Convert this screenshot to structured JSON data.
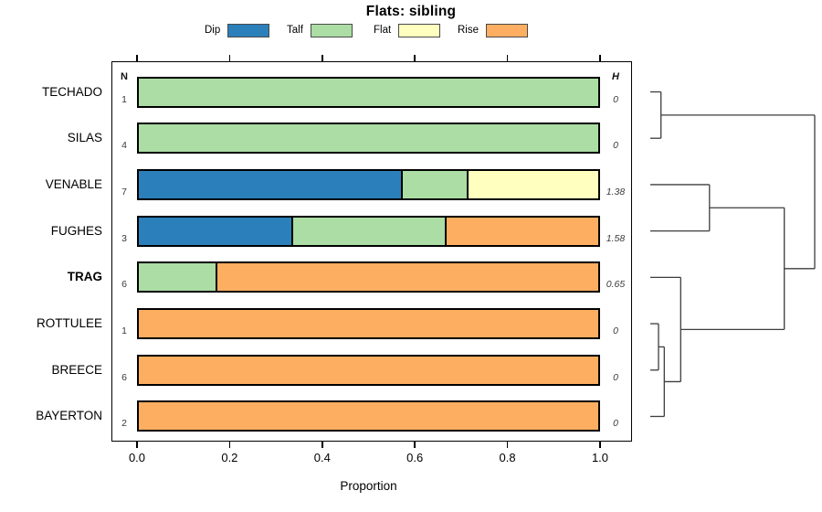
{
  "chart_data": {
    "type": "bar",
    "stacked": true,
    "orientation": "horizontal",
    "title": "Flats: sibling",
    "xlabel": "Proportion",
    "xlim": [
      0,
      1
    ],
    "x_ticks": [
      0.0,
      0.2,
      0.4,
      0.6,
      0.8,
      1.0
    ],
    "x_tick_labels": [
      "0.0",
      "0.2",
      "0.4",
      "0.6",
      "0.8",
      "1.0"
    ],
    "grid": false,
    "legend_position": "top",
    "legend": [
      {
        "label": "Dip",
        "color": "#2B7FBA"
      },
      {
        "label": "Talf",
        "color": "#ABDDA4"
      },
      {
        "label": "Flat",
        "color": "#FFFFBF"
      },
      {
        "label": "Rise",
        "color": "#FDAE61"
      }
    ],
    "columns": {
      "n_header": "N",
      "h_header": "H"
    },
    "rows": [
      {
        "label": "TECHADO",
        "n": "1",
        "entropy": "0",
        "bold": false,
        "segments": [
          {
            "category": "Talf",
            "value": 1.0
          }
        ]
      },
      {
        "label": "SILAS",
        "n": "4",
        "entropy": "0",
        "bold": false,
        "segments": [
          {
            "category": "Talf",
            "value": 1.0
          }
        ]
      },
      {
        "label": "VENABLE",
        "n": "7",
        "entropy": "1.38",
        "bold": false,
        "segments": [
          {
            "category": "Dip",
            "value": 0.571
          },
          {
            "category": "Talf",
            "value": 0.143
          },
          {
            "category": "Flat",
            "value": 0.286
          }
        ]
      },
      {
        "label": "FUGHES",
        "n": "3",
        "entropy": "1.58",
        "bold": false,
        "segments": [
          {
            "category": "Dip",
            "value": 0.333
          },
          {
            "category": "Talf",
            "value": 0.333
          },
          {
            "category": "Rise",
            "value": 0.334
          }
        ]
      },
      {
        "label": "TRAG",
        "n": "6",
        "entropy": "0.65",
        "bold": true,
        "segments": [
          {
            "category": "Talf",
            "value": 0.167
          },
          {
            "category": "Rise",
            "value": 0.833
          }
        ]
      },
      {
        "label": "ROTTULEE",
        "n": "1",
        "entropy": "0",
        "bold": false,
        "segments": [
          {
            "category": "Rise",
            "value": 1.0
          }
        ]
      },
      {
        "label": "BREECE",
        "n": "6",
        "entropy": "0",
        "bold": false,
        "segments": [
          {
            "category": "Rise",
            "value": 1.0
          }
        ]
      },
      {
        "label": "BAYERTON",
        "n": "2",
        "entropy": "0",
        "bold": false,
        "segments": [
          {
            "category": "Rise",
            "value": 1.0
          }
        ]
      }
    ],
    "dendrogram": {
      "side": "right",
      "leaf_order": [
        "TECHADO",
        "SILAS",
        "VENABLE",
        "FUGHES",
        "TRAG",
        "ROTTULEE",
        "BREECE",
        "BAYERTON"
      ],
      "merges": [
        {
          "a": "ROTTULEE",
          "b": "BREECE",
          "height": 0.05
        },
        {
          "a": 0,
          "b": "BAYERTON",
          "height": 0.085
        },
        {
          "a": "TECHADO",
          "b": "SILAS",
          "height": 0.065
        },
        {
          "a": "VENABLE",
          "b": "FUGHES",
          "height": 0.36
        },
        {
          "a": "TRAG",
          "b": 1,
          "height": 0.185
        },
        {
          "a": 3,
          "b": 4,
          "height": 0.815
        },
        {
          "a": 2,
          "b": 5,
          "height": 1.0
        }
      ]
    },
    "line_color": "#3d3d3d"
  }
}
